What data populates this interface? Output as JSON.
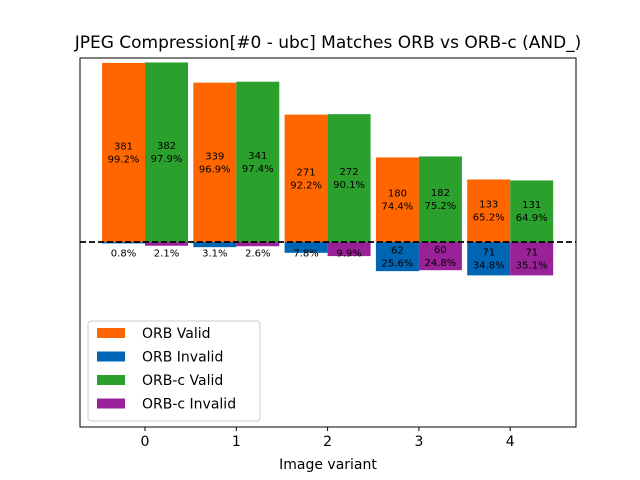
{
  "chart_data": {
    "type": "bar",
    "title": "JPEG Compression[#0 - ubc] Matches ORB vs ORB-c (AND_)",
    "xlabel": "Image variant",
    "ylabel": "",
    "categories": [
      "0",
      "1",
      "2",
      "3",
      "4"
    ],
    "series": [
      {
        "name": "ORB Valid",
        "color": "#ff6600",
        "values": [
          381,
          339,
          271,
          180,
          133
        ],
        "labels": [
          "381\n99.2%",
          "339\n96.9%",
          "271\n92.2%",
          "180\n74.4%",
          "133\n65.2%"
        ]
      },
      {
        "name": "ORB Invalid",
        "color": "#0066b3",
        "values": [
          3,
          11,
          23,
          62,
          71
        ],
        "labels": [
          "0.8%",
          "3.1%",
          "7.8%",
          "62\n25.6%",
          "71\n34.8%"
        ]
      },
      {
        "name": "ORB-c Valid",
        "color": "#2ca02c",
        "values": [
          382,
          341,
          272,
          182,
          131
        ],
        "labels": [
          "382\n97.9%",
          "341\n97.4%",
          "272\n90.1%",
          "182\n75.2%",
          "131\n64.9%"
        ]
      },
      {
        "name": "ORB-c Invalid",
        "color": "#992299",
        "values": [
          8,
          9,
          30,
          60,
          71
        ],
        "labels": [
          "2.1%",
          "2.6%",
          "9.9%",
          "60\n24.8%",
          "71\n35.1%"
        ]
      }
    ],
    "legend_position": "lower-left",
    "grid": false,
    "baseline": "dashed"
  }
}
